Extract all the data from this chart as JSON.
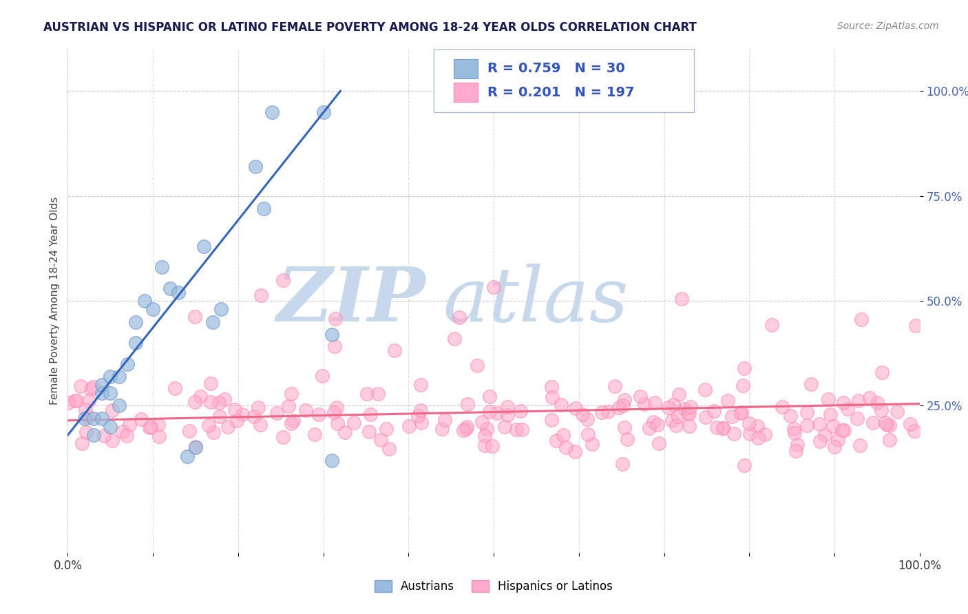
{
  "title": "AUSTRIAN VS HISPANIC OR LATINO FEMALE POVERTY AMONG 18-24 YEAR OLDS CORRELATION CHART",
  "source": "Source: ZipAtlas.com",
  "ylabel": "Female Poverty Among 18-24 Year Olds",
  "xlim": [
    0,
    1
  ],
  "ylim": [
    -0.1,
    1.1
  ],
  "xtick_labels": [
    "0.0%",
    "",
    "",
    "",
    "",
    "",
    "",
    "",
    "",
    "",
    "100.0%"
  ],
  "xtick_vals": [
    0,
    0.1,
    0.2,
    0.3,
    0.4,
    0.5,
    0.6,
    0.7,
    0.8,
    0.9,
    1.0
  ],
  "ytick_labels": [
    "25.0%",
    "50.0%",
    "75.0%",
    "100.0%"
  ],
  "ytick_vals": [
    0.25,
    0.5,
    0.75,
    1.0
  ],
  "R_austrian": 0.759,
  "N_austrian": 30,
  "R_hispanic": 0.201,
  "N_hispanic": 197,
  "blue_scatter_color": "#99BBDD",
  "pink_scatter_color": "#FFAACC",
  "blue_scatter_edge": "#7799CC",
  "pink_scatter_edge": "#FF88AA",
  "blue_line_color": "#3366BB",
  "pink_line_color": "#EE6688",
  "legend_fill_blue": "#99BBDD",
  "legend_fill_pink": "#FFAACC",
  "legend_labels": [
    "Austrians",
    "Hispanics or Latinos"
  ],
  "watermark_zip": "ZIP",
  "watermark_atlas": "atlas",
  "watermark_color": "#C8D8EC",
  "background_color": "#FFFFFF",
  "grid_color": "#BBBBCC",
  "title_color": "#1a1a4e",
  "source_color": "#888888",
  "austrian_x": [
    0.02,
    0.03,
    0.03,
    0.04,
    0.04,
    0.04,
    0.05,
    0.05,
    0.05,
    0.06,
    0.06,
    0.07,
    0.08,
    0.08,
    0.09,
    0.1,
    0.11,
    0.12,
    0.13,
    0.14,
    0.15,
    0.16,
    0.17,
    0.18,
    0.22,
    0.23,
    0.24,
    0.3,
    0.31,
    0.31
  ],
  "austrian_y": [
    0.22,
    0.18,
    0.22,
    0.22,
    0.28,
    0.3,
    0.2,
    0.28,
    0.32,
    0.25,
    0.32,
    0.35,
    0.4,
    0.45,
    0.5,
    0.48,
    0.58,
    0.53,
    0.52,
    0.13,
    0.15,
    0.63,
    0.45,
    0.48,
    0.82,
    0.72,
    0.95,
    0.95,
    0.42,
    0.12
  ],
  "blue_trend_x0": 0.0,
  "blue_trend_y0": 0.18,
  "blue_trend_x1": 0.32,
  "blue_trend_y1": 1.0,
  "pink_trend_x0": 0.0,
  "pink_trend_y0": 0.215,
  "pink_trend_x1": 1.0,
  "pink_trend_y1": 0.255,
  "hispanic_seed": 12345
}
